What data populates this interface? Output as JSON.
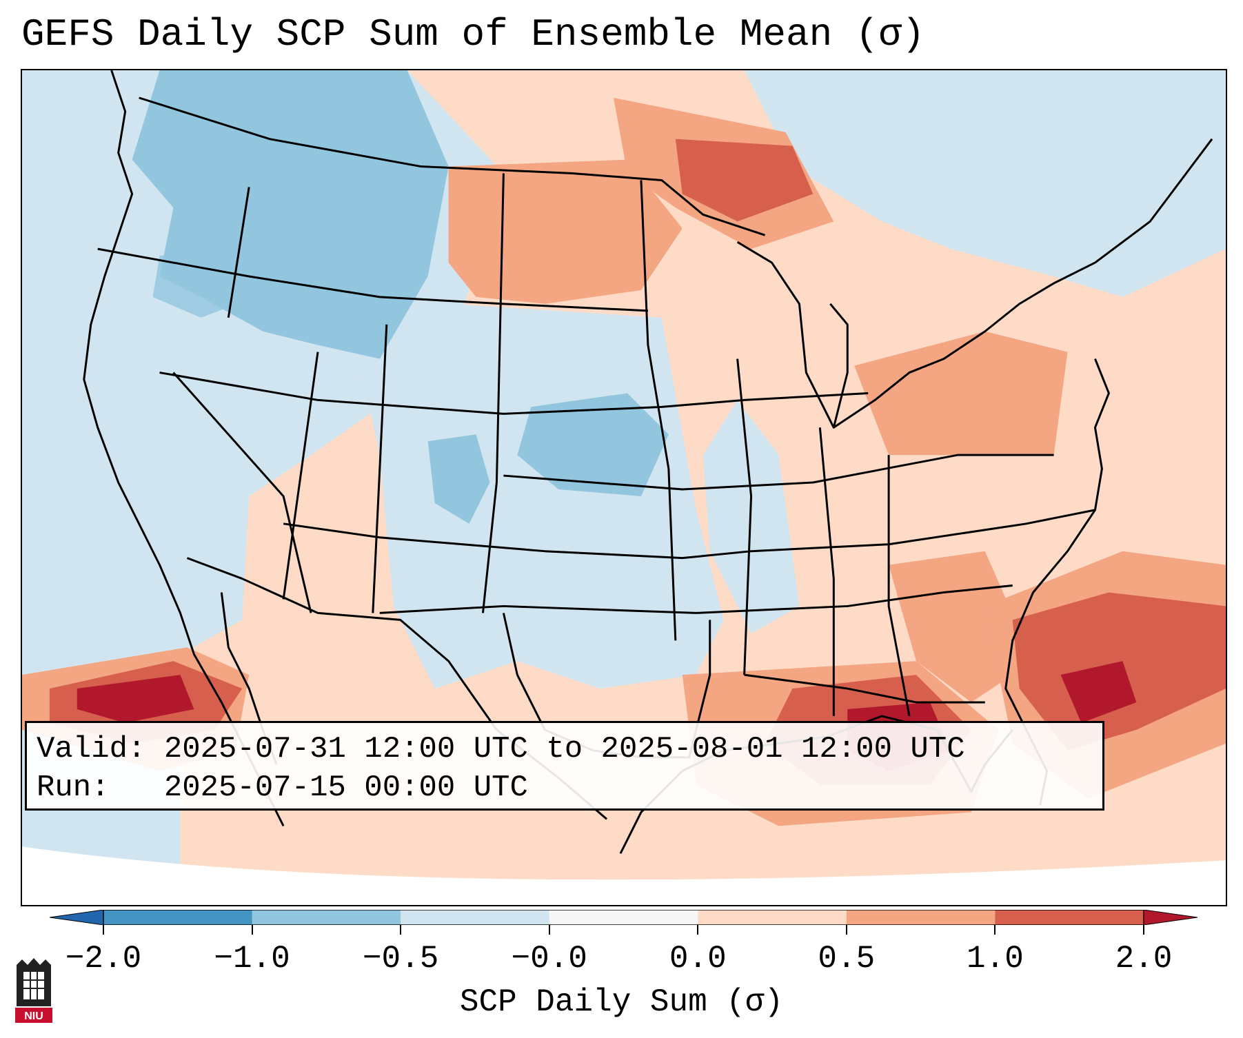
{
  "title": "GEFS Daily SCP Sum of Ensemble Mean (σ)",
  "info": {
    "valid_label": "Valid:",
    "valid_value": "2025-07-31 12:00 UTC to 2025-08-01 12:00 UTC",
    "run_label": "Run:",
    "run_value": "2025-07-15 00:00 UTC"
  },
  "colorbar": {
    "label": "SCP Daily Sum (σ)",
    "ticks": [
      "−2.0",
      "−1.0",
      "−0.5",
      "−0.0",
      "0.0",
      "0.5",
      "1.0",
      "2.0"
    ],
    "colors": [
      "#4393c3",
      "#92c5de",
      "#d1e5f0",
      "#f7f7f7",
      "#fddbc7",
      "#f4a582",
      "#d6604d",
      "#b2182b"
    ],
    "under_color": "#2166ac",
    "over_color": "#b2182b"
  },
  "map": {
    "background_color": "#d1e5f0",
    "land_outline_color": "#000000"
  },
  "logo": {
    "text": "NIU"
  }
}
